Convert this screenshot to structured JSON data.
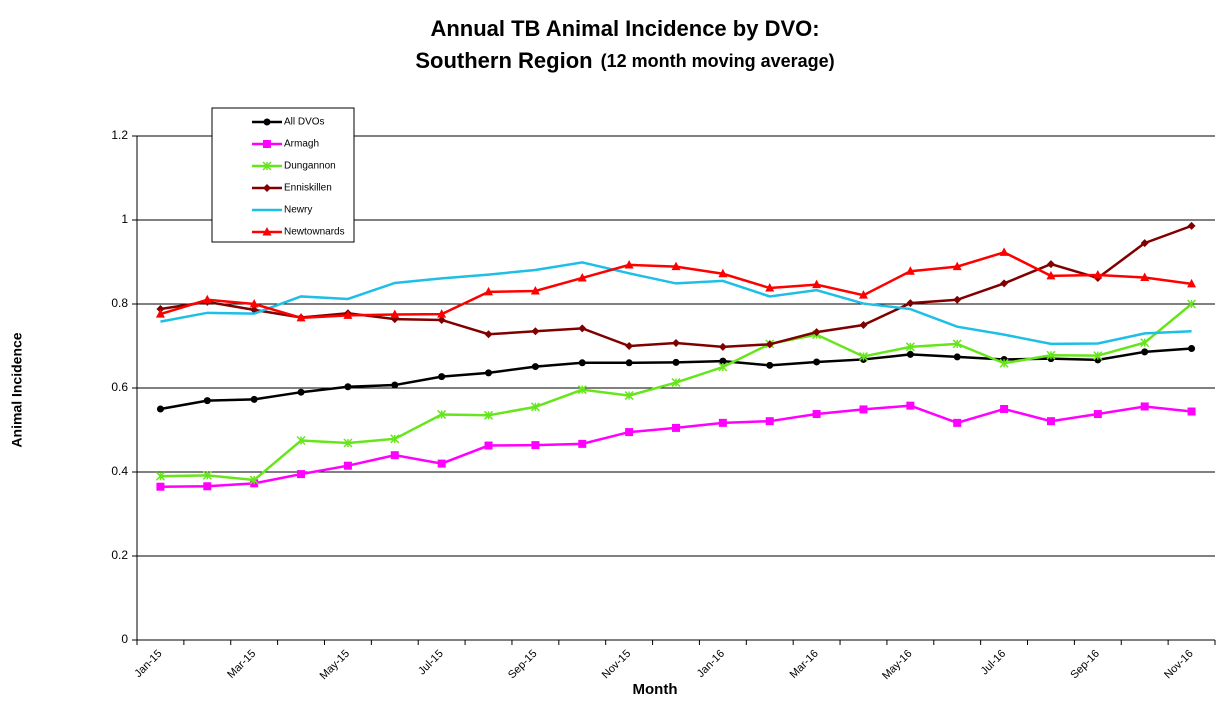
{
  "chart_data": {
    "type": "line",
    "title": "Annual TB Animal Incidence by DVO:",
    "subtitle": "Southern Region",
    "subtitle_note": "(12 month moving average)",
    "x_label": "Month",
    "y_label": "Animal Incidence",
    "categories": [
      "Jan-15",
      null,
      "Mar-15",
      null,
      "May-15",
      null,
      "Jul-15",
      null,
      "Sep-15",
      null,
      "Nov-15",
      null,
      "Jan-16",
      null,
      "Mar-16",
      null,
      "May-16",
      null,
      "Jul-16",
      null,
      "Sep-16",
      null,
      "Nov-16"
    ],
    "ylim": [
      0,
      1.2
    ],
    "yticks": [
      0,
      0.2,
      0.4,
      0.6,
      0.8,
      1,
      1.2
    ],
    "grid": true,
    "legend": "upper-left",
    "series": [
      {
        "name": "All DVOs",
        "color": "#000000",
        "marker": "circle",
        "values": [
          0.55,
          0.57,
          0.573,
          0.59,
          0.603,
          0.607,
          0.627,
          0.636,
          0.651,
          0.66,
          0.66,
          0.661,
          0.664,
          0.654,
          0.662,
          0.668,
          0.68,
          0.674,
          0.668,
          0.67,
          0.667,
          0.686,
          0.694
        ]
      },
      {
        "name": "Armagh",
        "color": "#ff00ff",
        "marker": "square",
        "values": [
          0.365,
          0.366,
          0.373,
          0.395,
          0.415,
          0.44,
          0.42,
          0.463,
          0.464,
          0.467,
          0.495,
          0.505,
          0.517,
          0.521,
          0.538,
          0.549,
          0.558,
          0.517,
          0.55,
          0.521,
          0.538,
          0.556,
          0.544
        ]
      },
      {
        "name": "Dungannon",
        "color": "#66e61a",
        "marker": "star",
        "values": [
          0.39,
          0.392,
          0.381,
          0.475,
          0.469,
          0.479,
          0.537,
          0.535,
          0.555,
          0.596,
          0.582,
          0.613,
          0.65,
          0.705,
          0.727,
          0.675,
          0.698,
          0.705,
          0.659,
          0.678,
          0.677,
          0.708,
          0.8
        ]
      },
      {
        "name": "Enniskillen",
        "color": "#800000",
        "marker": "diamond",
        "values": [
          0.788,
          0.805,
          0.786,
          0.768,
          0.778,
          0.764,
          0.762,
          0.728,
          0.735,
          0.742,
          0.7,
          0.707,
          0.698,
          0.704,
          0.733,
          0.75,
          0.802,
          0.81,
          0.849,
          0.895,
          0.862,
          0.945,
          0.986
        ]
      },
      {
        "name": "Newry",
        "color": "#1ebfe6",
        "marker": "none",
        "values": [
          0.758,
          0.779,
          0.777,
          0.818,
          0.812,
          0.85,
          0.861,
          0.87,
          0.881,
          0.899,
          0.873,
          0.849,
          0.855,
          0.818,
          0.833,
          0.801,
          0.788,
          0.746,
          0.727,
          0.705,
          0.706,
          0.73,
          0.735
        ]
      },
      {
        "name": "Newtownards",
        "color": "#ff0000",
        "marker": "triangle",
        "values": [
          0.776,
          0.81,
          0.8,
          0.767,
          0.773,
          0.775,
          0.776,
          0.829,
          0.831,
          0.862,
          0.893,
          0.889,
          0.872,
          0.838,
          0.846,
          0.821,
          0.878,
          0.889,
          0.923,
          0.867,
          0.869,
          0.863,
          0.848
        ]
      }
    ]
  }
}
